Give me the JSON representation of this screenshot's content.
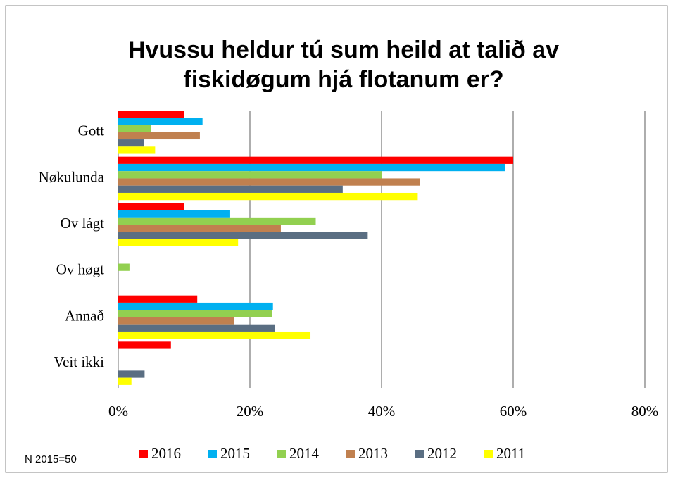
{
  "chart_data": {
    "type": "bar",
    "orientation": "horizontal",
    "title": "Hvussu heldur tú sum heild at talið av fiskidøgum hjá flotanum er?",
    "title_lines": [
      "Hvussu heldur tú sum heild at talið av",
      "fiskidøgum hjá flotanum er?"
    ],
    "note": "N 2015=50",
    "categories": [
      "Gott",
      "Nøkulunda",
      "Ov lágt",
      "Ov høgt",
      "Annað",
      "Veit ikki"
    ],
    "series": [
      {
        "name": "2016",
        "color": "#ff0000",
        "values": [
          10,
          60,
          10,
          0,
          12,
          8
        ]
      },
      {
        "name": "2015",
        "color": "#00b0f0",
        "values": [
          12.8,
          58.8,
          17,
          0,
          23.5,
          0
        ]
      },
      {
        "name": "2014",
        "color": "#92d050",
        "values": [
          5,
          40,
          30,
          1.7,
          23.4,
          0
        ]
      },
      {
        "name": "2013",
        "color": "#c0804f",
        "values": [
          12.4,
          45.8,
          24.7,
          0,
          17.6,
          0
        ]
      },
      {
        "name": "2012",
        "color": "#5a6e82",
        "values": [
          3.9,
          34.1,
          37.9,
          0,
          23.8,
          4
        ]
      },
      {
        "name": "2011",
        "color": "#ffff00",
        "values": [
          5.6,
          45.5,
          18.2,
          0,
          29.2,
          2
        ]
      }
    ],
    "xlim": [
      0,
      80
    ],
    "xticks": [
      {
        "value": 0,
        "label": "0%"
      },
      {
        "value": 20,
        "label": "20%"
      },
      {
        "value": 40,
        "label": "40%"
      },
      {
        "value": 60,
        "label": "60%"
      },
      {
        "value": 80,
        "label": "80%"
      }
    ],
    "grid": true,
    "legend": "bottom"
  }
}
